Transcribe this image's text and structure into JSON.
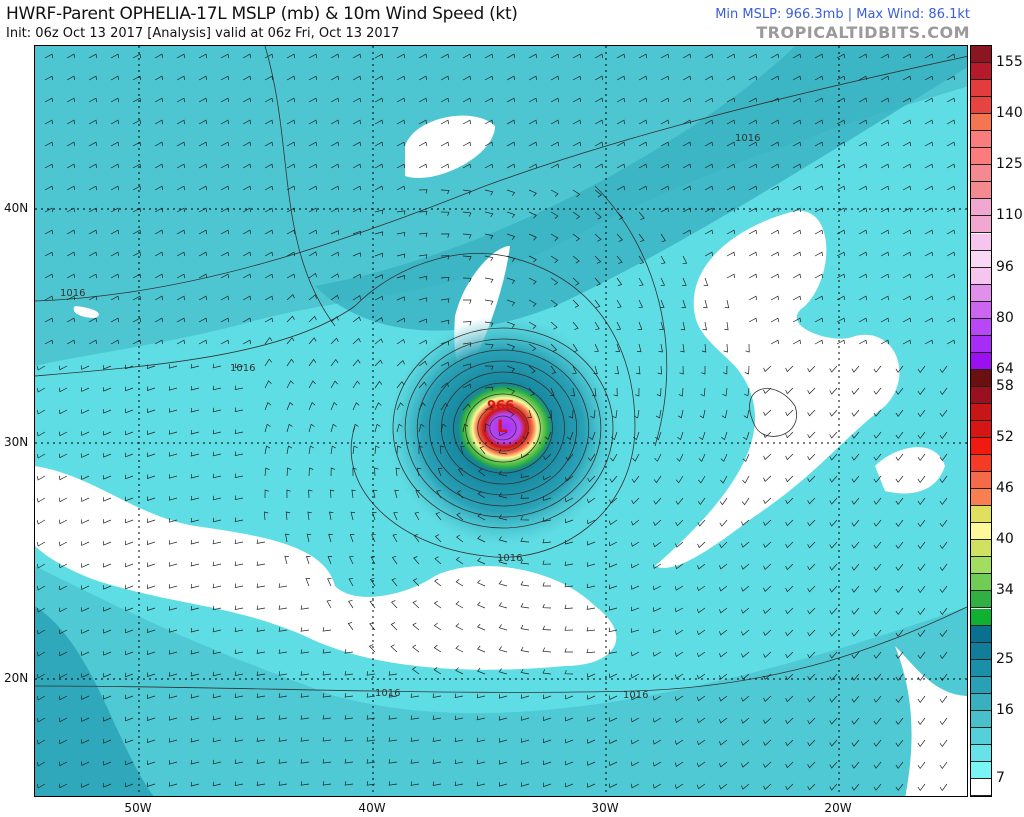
{
  "header": {
    "title": "HWRF-Parent OPHELIA-17L MSLP (mb) & 10m Wind Speed (kt)",
    "subtitle": "Init: 06z Oct 13 2017   [Analysis]   valid at 06z Fri, Oct 13 2017",
    "stats": "Min MSLP: 966.3mb | Max Wind: 86.1kt",
    "brand": "TROPICALTIDBITS.COM"
  },
  "map": {
    "lat_labels": [
      "40N",
      "30N",
      "20N"
    ],
    "lon_labels": [
      "50W",
      "40W",
      "30W",
      "20W"
    ],
    "contour_labels": [
      "1016",
      "1016",
      "1016",
      "1016",
      "1016",
      "1016"
    ],
    "center_pressure_label": "966",
    "low_symbol": "L",
    "colors": {
      "ocean_light": "#7af5f5",
      "ocean_mid": "#48c0cc",
      "ocean_dark": "#1a8fa8",
      "calm": "#ffffff"
    }
  },
  "colorbar": {
    "unit": "kt",
    "tick_labels": [
      "155",
      "140",
      "125",
      "110",
      "96",
      "80",
      "64",
      "58",
      "52",
      "46",
      "40",
      "34",
      "25",
      "16",
      "7"
    ],
    "colors": [
      "#8b1520",
      "#b5192a",
      "#e23c3c",
      "#e5443f",
      "#f47651",
      "#fb7c7c",
      "#fb7c7c",
      "#f48a90",
      "#f28a90",
      "#f0a8d0",
      "#f0a8d0",
      "#f5c5ee",
      "#f8d8f2",
      "#f5c5ee",
      "#e090ea",
      "#cc66f0",
      "#b848f5",
      "#a62df5",
      "#9a10f0",
      "#6a1010",
      "#9a1020",
      "#c81515",
      "#d81515",
      "#f01a10",
      "#f53a25",
      "#f56a48",
      "#f88050",
      "#e0e060",
      "#fdf89a",
      "#d0e060",
      "#a0dd60",
      "#70cc55",
      "#30b040",
      "#10b030",
      "#0a7090",
      "#107e98",
      "#1a8fa8",
      "#28a0b5",
      "#38b0c0",
      "#48c0cc",
      "#55d0da",
      "#66e2e8",
      "#7af5f5",
      "#ffffff"
    ]
  }
}
